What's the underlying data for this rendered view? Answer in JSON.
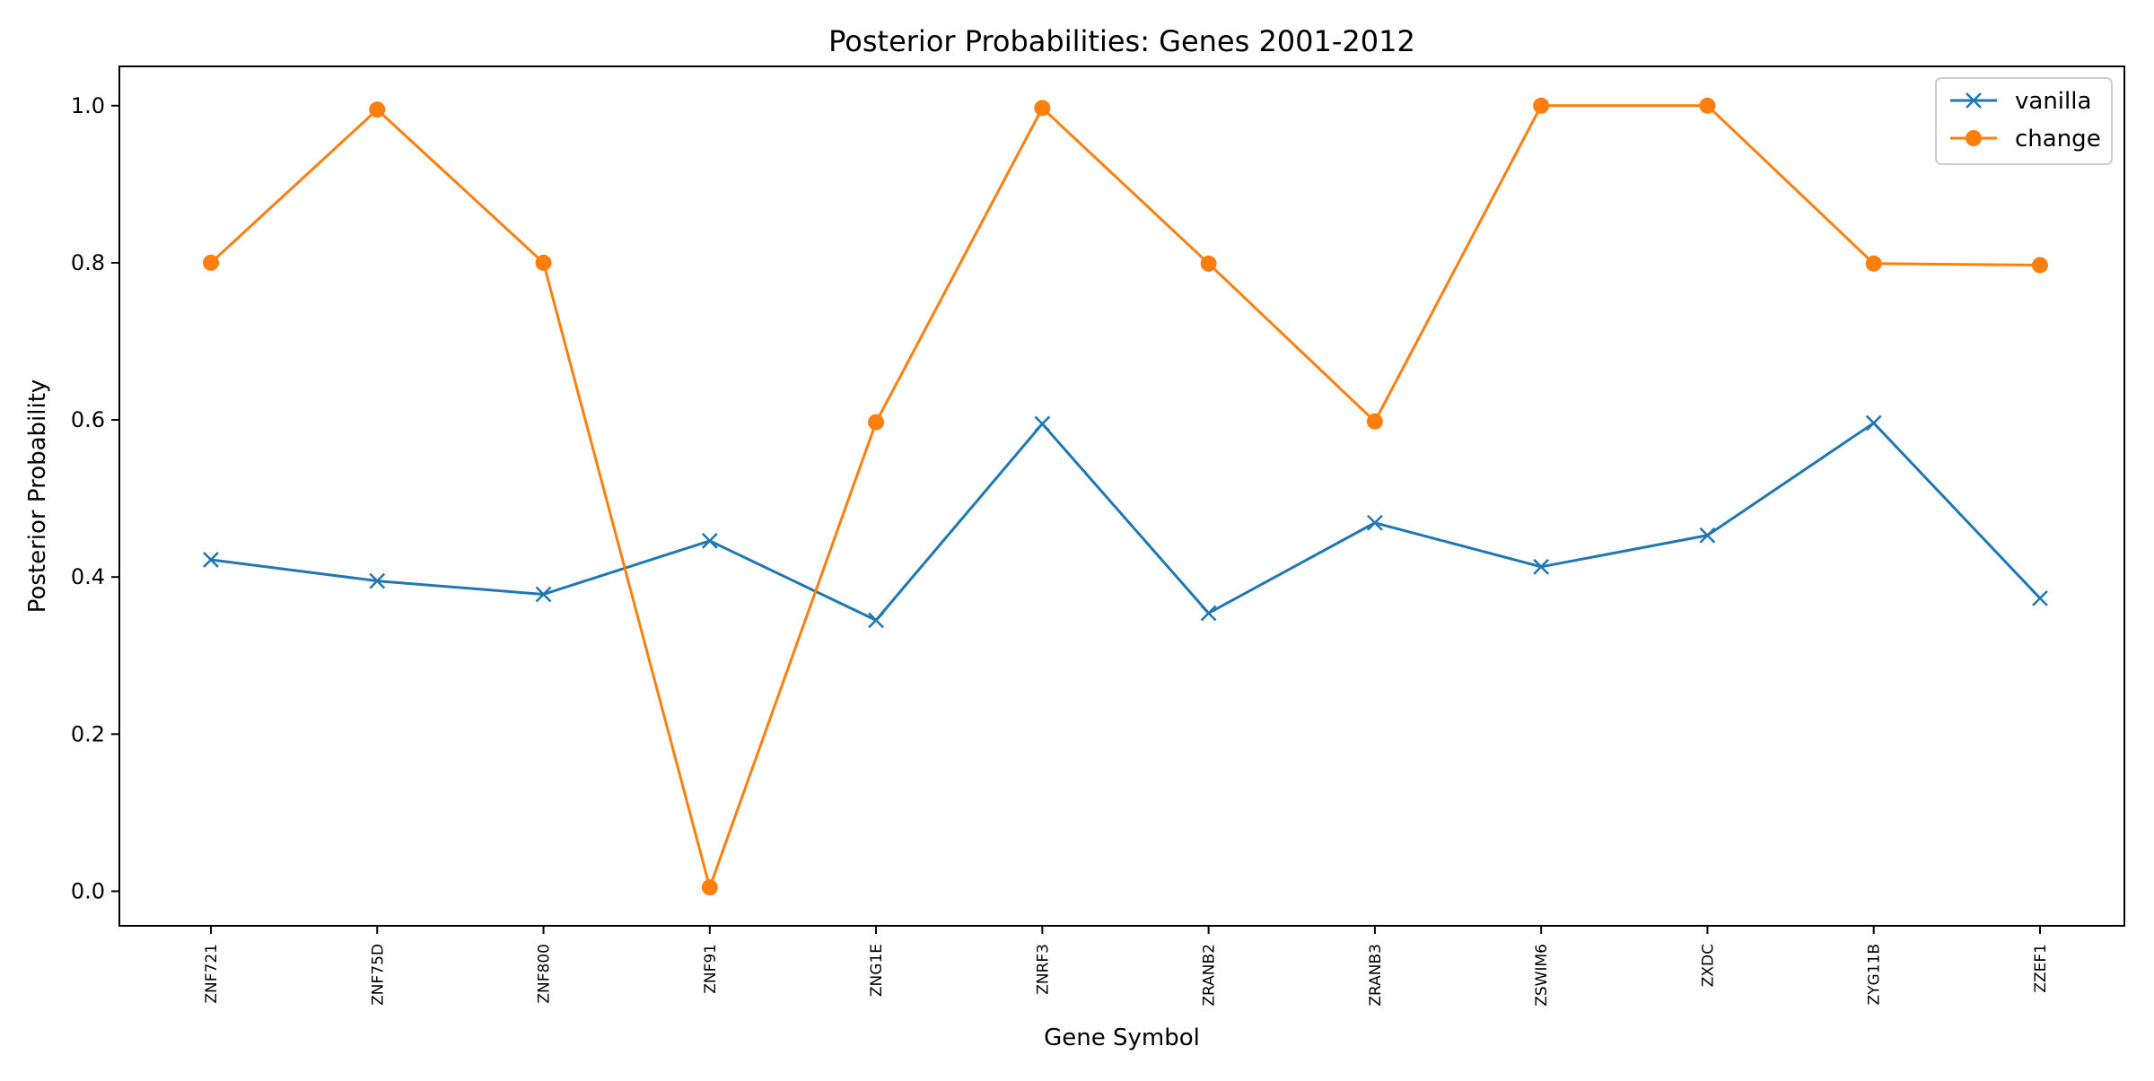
{
  "chart_data": {
    "type": "line",
    "title": "Posterior Probabilities: Genes 2001-2012",
    "xlabel": "Gene Symbol",
    "ylabel": "Posterior Probability",
    "categories": [
      "ZNF721",
      "ZNF75D",
      "ZNF800",
      "ZNF91",
      "ZNG1E",
      "ZNRF3",
      "ZRANB2",
      "ZRANB3",
      "ZSWIM6",
      "ZXDC",
      "ZYG11B",
      "ZZEF1"
    ],
    "ylim": [
      -0.044,
      1.05
    ],
    "yticks": [
      0.0,
      0.2,
      0.4,
      0.6,
      0.8,
      1.0
    ],
    "ytick_labels": [
      "0.0",
      "0.2",
      "0.4",
      "0.6",
      "0.8",
      "1.0"
    ],
    "grid": false,
    "legend_position": "top-right",
    "series": [
      {
        "name": "vanilla",
        "color": "#1f77b4",
        "marker": "x",
        "values": [
          0.422,
          0.395,
          0.378,
          0.446,
          0.345,
          0.595,
          0.354,
          0.469,
          0.413,
          0.453,
          0.596,
          0.373
        ]
      },
      {
        "name": "change",
        "color": "#ff7f0e",
        "marker": "circle",
        "values": [
          0.8,
          0.995,
          0.8,
          0.005,
          0.597,
          0.997,
          0.799,
          0.598,
          1.0,
          1.0,
          0.799,
          0.797
        ]
      }
    ]
  }
}
